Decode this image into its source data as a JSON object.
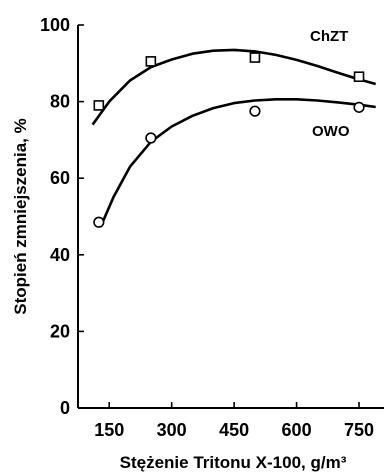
{
  "chart_data": {
    "type": "scatter",
    "title": "",
    "xlabel": "Stężenie Tritonu X-100, g/m³",
    "ylabel": "Stopień zmniejszenia, %",
    "xlim": [
      75,
      810
    ],
    "ylim": [
      0,
      100
    ],
    "xticks": [
      150,
      300,
      450,
      600,
      750
    ],
    "yticks": [
      0,
      20,
      40,
      60,
      80,
      100
    ],
    "series": [
      {
        "name": "ChZT",
        "marker": "square",
        "x": [
          125,
          250,
          500,
          750
        ],
        "y": [
          79,
          90.5,
          91.5,
          86.5
        ],
        "fit": {
          "x": [
            110,
            150,
            200,
            250,
            300,
            350,
            400,
            450,
            500,
            550,
            600,
            650,
            700,
            750,
            790
          ],
          "y": [
            74,
            80,
            85.5,
            89,
            91,
            92.5,
            93.3,
            93.5,
            93.1,
            92.2,
            90.9,
            89.3,
            87.5,
            85.8,
            84.6
          ]
        }
      },
      {
        "name": "OWO",
        "marker": "circle",
        "x": [
          125,
          250,
          500,
          750
        ],
        "y": [
          48.5,
          70.5,
          77.5,
          78.5
        ],
        "fit": {
          "x": [
            130,
            160,
            200,
            250,
            300,
            350,
            400,
            450,
            500,
            550,
            600,
            650,
            700,
            750,
            790
          ],
          "y": [
            47.5,
            55,
            63,
            69.5,
            73.5,
            76.3,
            78.3,
            79.6,
            80.3,
            80.6,
            80.6,
            80.3,
            79.8,
            79.2,
            78.6
          ]
        }
      }
    ]
  }
}
